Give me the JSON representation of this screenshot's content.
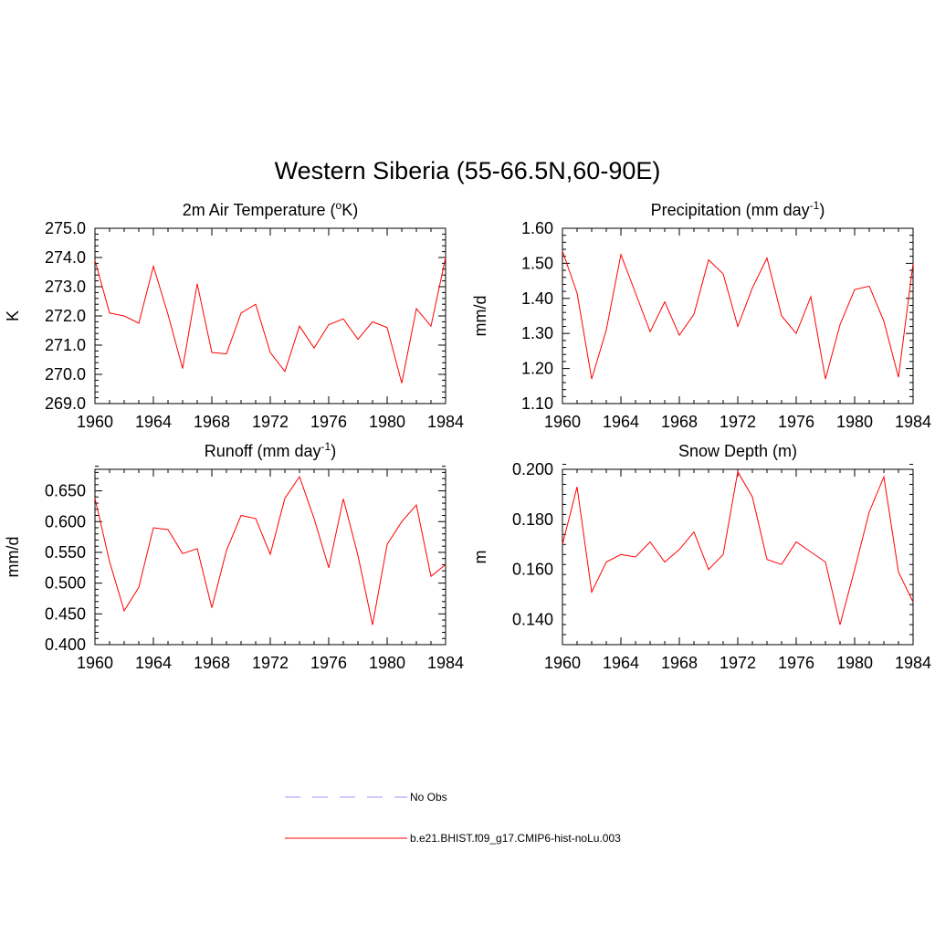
{
  "title": "Western Siberia (55-66.5N,60-90E)",
  "chart_data": [
    {
      "type": "line",
      "title_main": "2m Air Temperature (",
      "title_sup": "o",
      "title_end": "K)",
      "ylabel": "K",
      "xlim": [
        1960,
        1984
      ],
      "ylim": [
        269.0,
        275.0
      ],
      "xticks": [
        "1960",
        "1964",
        "1968",
        "1972",
        "1976",
        "1980",
        "1984"
      ],
      "yticks": [
        "269.0",
        "270.0",
        "271.0",
        "272.0",
        "273.0",
        "274.0",
        "275.0"
      ],
      "series": [
        {
          "color": "#ff0000",
          "x": [
            1960,
            1961,
            1962,
            1963,
            1964,
            1965,
            1966,
            1967,
            1968,
            1969,
            1970,
            1971,
            1972,
            1973,
            1974,
            1975,
            1976,
            1977,
            1978,
            1979,
            1980,
            1981,
            1982,
            1983,
            1984
          ],
          "y": [
            273.9,
            272.1,
            272.0,
            271.75,
            273.7,
            272.05,
            270.2,
            273.1,
            270.75,
            270.7,
            272.1,
            272.4,
            270.75,
            270.1,
            271.65,
            270.9,
            271.7,
            271.9,
            271.2,
            271.8,
            271.6,
            269.7,
            272.25,
            271.65,
            274.0
          ]
        }
      ]
    },
    {
      "type": "line",
      "title_main": "Precipitation (mm day",
      "title_sup": "-1",
      "title_end": ")",
      "ylabel": "mm/d",
      "xlim": [
        1960,
        1984
      ],
      "ylim": [
        1.1,
        1.6
      ],
      "xticks": [
        "1960",
        "1964",
        "1968",
        "1972",
        "1976",
        "1980",
        "1984"
      ],
      "yticks": [
        "1.10",
        "1.20",
        "1.30",
        "1.40",
        "1.50",
        "1.60"
      ],
      "series": [
        {
          "color": "#ff0000",
          "x": [
            1960,
            1961,
            1962,
            1963,
            1964,
            1965,
            1966,
            1967,
            1968,
            1969,
            1970,
            1971,
            1972,
            1973,
            1974,
            1975,
            1976,
            1977,
            1978,
            1979,
            1980,
            1981,
            1982,
            1983,
            1984
          ],
          "y": [
            1.535,
            1.415,
            1.17,
            1.31,
            1.525,
            1.415,
            1.305,
            1.39,
            1.295,
            1.355,
            1.51,
            1.47,
            1.32,
            1.43,
            1.515,
            1.35,
            1.3,
            1.405,
            1.17,
            1.325,
            1.425,
            1.435,
            1.335,
            1.175,
            1.5
          ]
        }
      ]
    },
    {
      "type": "line",
      "title_main": "Runoff (mm day",
      "title_sup": "-1",
      "title_end": ")",
      "ylabel": "mm/d",
      "xlim": [
        1960,
        1984
      ],
      "ylim": [
        0.4,
        0.685
      ],
      "xticks": [
        "1960",
        "1964",
        "1968",
        "1972",
        "1976",
        "1980",
        "1984"
      ],
      "yticks": [
        "0.400",
        "0.450",
        "0.500",
        "0.550",
        "0.600",
        "0.650"
      ],
      "series": [
        {
          "color": "#ff0000",
          "x": [
            1960,
            1961,
            1962,
            1963,
            1964,
            1965,
            1966,
            1967,
            1968,
            1969,
            1970,
            1971,
            1972,
            1973,
            1974,
            1975,
            1976,
            1977,
            1978,
            1979,
            1980,
            1981,
            1982,
            1983,
            1984
          ],
          "y": [
            0.638,
            0.535,
            0.455,
            0.493,
            0.59,
            0.587,
            0.548,
            0.556,
            0.46,
            0.553,
            0.61,
            0.605,
            0.547,
            0.638,
            0.673,
            0.605,
            0.525,
            0.637,
            0.545,
            0.432,
            0.563,
            0.6,
            0.627,
            0.511,
            0.53
          ]
        }
      ]
    },
    {
      "type": "line",
      "title_main": "Snow Depth (m)",
      "title_sup": "",
      "title_end": "",
      "ylabel": "m",
      "xlim": [
        1960,
        1984
      ],
      "ylim": [
        0.13,
        0.2
      ],
      "xticks": [
        "1960",
        "1964",
        "1968",
        "1972",
        "1976",
        "1980",
        "1984"
      ],
      "yticks": [
        "0.140",
        "0.160",
        "0.180",
        "0.200"
      ],
      "series": [
        {
          "color": "#ff0000",
          "x": [
            1960,
            1961,
            1962,
            1963,
            1964,
            1965,
            1966,
            1967,
            1968,
            1969,
            1970,
            1971,
            1972,
            1973,
            1974,
            1975,
            1976,
            1977,
            1978,
            1979,
            1980,
            1981,
            1982,
            1983,
            1984
          ],
          "y": [
            0.17,
            0.193,
            0.151,
            0.163,
            0.166,
            0.165,
            0.171,
            0.163,
            0.168,
            0.175,
            0.16,
            0.166,
            0.199,
            0.189,
            0.164,
            0.162,
            0.171,
            0.167,
            0.163,
            0.138,
            0.16,
            0.183,
            0.197,
            0.159,
            0.147
          ]
        }
      ]
    }
  ],
  "legend": [
    {
      "label": "No Obs",
      "color": "#9999ff",
      "dash": "dashed"
    },
    {
      "label": "b.e21.BHIST.f09_g17.CMIP6-hist-noLu.003",
      "color": "#ff0000",
      "dash": "solid"
    }
  ]
}
